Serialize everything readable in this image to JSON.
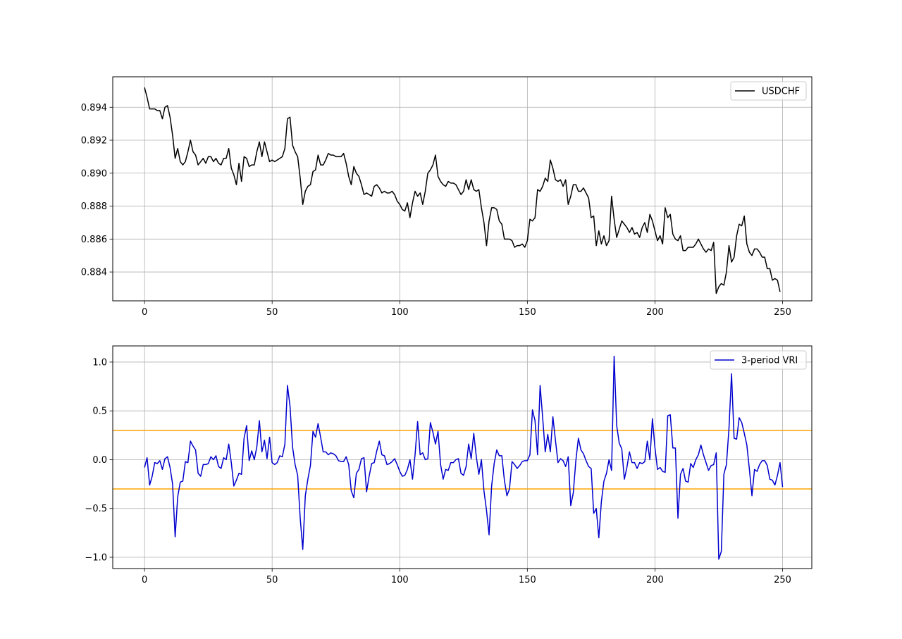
{
  "chart_data": [
    {
      "type": "line",
      "title": "",
      "xlabel": "",
      "ylabel": "",
      "xlim": [
        -12.45,
        261.45
      ],
      "ylim": [
        0.88225,
        0.89585
      ],
      "x_ticks": [
        0,
        50,
        100,
        150,
        200,
        250
      ],
      "x_tick_labels": [
        "0",
        "50",
        "100",
        "150",
        "200",
        "250"
      ],
      "y_ticks": [
        0.884,
        0.886,
        0.888,
        0.89,
        0.892,
        0.894
      ],
      "y_tick_labels": [
        "0.884",
        "0.886",
        "0.888",
        "0.890",
        "0.892",
        "0.894"
      ],
      "grid": true,
      "legend_position": "upper-right",
      "series": [
        {
          "name": "USDCHF",
          "color": "#000000",
          "x_start": 0,
          "values": [
            0.8952,
            0.8946,
            0.8939,
            0.8939,
            0.8939,
            0.8938,
            0.8938,
            0.8933,
            0.894,
            0.8941,
            0.8934,
            0.8923,
            0.8909,
            0.8915,
            0.8907,
            0.8905,
            0.8907,
            0.8913,
            0.892,
            0.8913,
            0.8911,
            0.8905,
            0.8907,
            0.8909,
            0.8906,
            0.891,
            0.891,
            0.8907,
            0.8909,
            0.8906,
            0.8905,
            0.8909,
            0.8909,
            0.8915,
            0.8903,
            0.8899,
            0.8893,
            0.8906,
            0.8895,
            0.891,
            0.8909,
            0.8904,
            0.8905,
            0.8905,
            0.8913,
            0.8919,
            0.891,
            0.8919,
            0.8913,
            0.8907,
            0.8908,
            0.8907,
            0.8908,
            0.8909,
            0.891,
            0.8915,
            0.8933,
            0.8934,
            0.8917,
            0.8913,
            0.891,
            0.8897,
            0.8881,
            0.8889,
            0.8892,
            0.8893,
            0.8901,
            0.8902,
            0.8911,
            0.8905,
            0.8905,
            0.8908,
            0.8912,
            0.8911,
            0.8911,
            0.891,
            0.891,
            0.891,
            0.8912,
            0.8906,
            0.8898,
            0.8893,
            0.8904,
            0.89,
            0.8898,
            0.8893,
            0.8887,
            0.8888,
            0.8887,
            0.8886,
            0.8892,
            0.8893,
            0.8891,
            0.8888,
            0.8889,
            0.8888,
            0.8888,
            0.8889,
            0.8887,
            0.8883,
            0.8881,
            0.8878,
            0.8877,
            0.8882,
            0.8873,
            0.8882,
            0.8889,
            0.8886,
            0.8888,
            0.8881,
            0.8889,
            0.89,
            0.8902,
            0.8905,
            0.8911,
            0.8898,
            0.8895,
            0.8893,
            0.8892,
            0.8895,
            0.8894,
            0.8894,
            0.8893,
            0.889,
            0.8887,
            0.8889,
            0.8896,
            0.889,
            0.8896,
            0.889,
            0.8889,
            0.889,
            0.8879,
            0.887,
            0.8856,
            0.8871,
            0.8879,
            0.8879,
            0.8878,
            0.8871,
            0.8869,
            0.886,
            0.886,
            0.886,
            0.8859,
            0.8855,
            0.8856,
            0.8856,
            0.8857,
            0.8855,
            0.8859,
            0.8872,
            0.8871,
            0.8873,
            0.889,
            0.8889,
            0.8892,
            0.8897,
            0.8895,
            0.8908,
            0.8903,
            0.8896,
            0.8895,
            0.8896,
            0.8892,
            0.8896,
            0.8881,
            0.8886,
            0.8893,
            0.8893,
            0.8889,
            0.8889,
            0.8891,
            0.8888,
            0.8885,
            0.8873,
            0.8874,
            0.8856,
            0.8865,
            0.8857,
            0.8862,
            0.8856,
            0.8859,
            0.8886,
            0.8872,
            0.8861,
            0.8866,
            0.8871,
            0.8869,
            0.8867,
            0.8864,
            0.8867,
            0.8863,
            0.8864,
            0.8861,
            0.8867,
            0.887,
            0.8864,
            0.8875,
            0.8871,
            0.8865,
            0.8859,
            0.8862,
            0.8857,
            0.8879,
            0.8873,
            0.8875,
            0.8863,
            0.886,
            0.8859,
            0.8862,
            0.8853,
            0.8853,
            0.8855,
            0.8855,
            0.8855,
            0.8857,
            0.886,
            0.8857,
            0.8854,
            0.8852,
            0.8854,
            0.8853,
            0.8858,
            0.8827,
            0.8831,
            0.8833,
            0.8832,
            0.884,
            0.8856,
            0.8846,
            0.8849,
            0.8862,
            0.8869,
            0.8868,
            0.8874,
            0.8857,
            0.8852,
            0.885,
            0.8854,
            0.8854,
            0.8852,
            0.8849,
            0.8849,
            0.8842,
            0.8842,
            0.8835,
            0.8836,
            0.8835,
            0.8828
          ]
        }
      ]
    },
    {
      "type": "line",
      "title": "",
      "xlabel": "",
      "ylabel": "",
      "xlim": [
        -12.45,
        261.45
      ],
      "ylim": [
        -1.1155,
        1.1655
      ],
      "x_ticks": [
        0,
        50,
        100,
        150,
        200,
        250
      ],
      "x_tick_labels": [
        "0",
        "50",
        "100",
        "150",
        "200",
        "250"
      ],
      "y_ticks": [
        -1.0,
        -0.5,
        0.0,
        0.5,
        1.0
      ],
      "y_tick_labels": [
        "−1.0",
        "−0.5",
        "0.0",
        "0.5",
        "1.0"
      ],
      "grid": true,
      "legend_position": "upper-right",
      "horizontal_lines": [
        {
          "y": 0.3,
          "color": "#ffa500"
        },
        {
          "y": -0.3,
          "color": "#ffa500"
        }
      ],
      "series": [
        {
          "name": "3-period VRI",
          "color": "#0000cd",
          "x_start": 0,
          "values": [
            -0.08,
            0.02,
            -0.26,
            -0.17,
            -0.03,
            -0.04,
            -0.01,
            -0.1,
            0.01,
            0.03,
            -0.08,
            -0.25,
            -0.79,
            -0.38,
            -0.23,
            -0.22,
            -0.02,
            -0.03,
            0.19,
            0.14,
            0.1,
            -0.14,
            -0.17,
            -0.05,
            -0.05,
            -0.04,
            0.03,
            0.0,
            0.04,
            -0.07,
            -0.09,
            0.02,
            0.0,
            0.16,
            -0.03,
            -0.27,
            -0.21,
            -0.14,
            -0.15,
            0.22,
            0.35,
            -0.01,
            0.09,
            0.0,
            0.13,
            0.4,
            0.08,
            0.2,
            0.01,
            0.23,
            -0.03,
            -0.05,
            -0.03,
            0.04,
            0.03,
            0.16,
            0.76,
            0.55,
            0.13,
            -0.05,
            -0.16,
            -0.6,
            -0.92,
            -0.37,
            -0.2,
            -0.06,
            0.29,
            0.23,
            0.37,
            0.23,
            0.08,
            0.08,
            0.05,
            0.07,
            0.06,
            0.04,
            -0.01,
            -0.02,
            -0.02,
            0.03,
            -0.05,
            -0.32,
            -0.39,
            -0.14,
            -0.1,
            0.01,
            0.02,
            -0.33,
            -0.17,
            -0.04,
            -0.03,
            0.09,
            0.19,
            0.05,
            0.04,
            -0.05,
            -0.04,
            -0.02,
            0.01,
            -0.05,
            -0.12,
            -0.17,
            -0.16,
            -0.1,
            0.0,
            -0.2,
            0.05,
            0.39,
            0.05,
            0.07,
            0.0,
            0.01,
            0.38,
            0.28,
            0.16,
            0.29,
            -0.05,
            -0.2,
            -0.1,
            -0.11,
            -0.03,
            -0.03,
            0.0,
            0.01,
            -0.14,
            -0.16,
            -0.07,
            0.16,
            0.01,
            0.27,
            0.03,
            -0.15,
            0.0,
            -0.32,
            -0.52,
            -0.77,
            -0.27,
            -0.04,
            0.1,
            0.04,
            0.04,
            -0.21,
            -0.37,
            -0.3,
            -0.02,
            -0.05,
            -0.09,
            -0.06,
            -0.02,
            -0.01,
            -0.01,
            0.05,
            0.51,
            0.4,
            0.05,
            0.76,
            0.43,
            0.08,
            0.26,
            0.08,
            0.44,
            0.2,
            -0.03,
            0.01,
            -0.01,
            -0.07,
            0.03,
            -0.47,
            -0.34,
            -0.01,
            0.22,
            0.1,
            0.06,
            -0.01,
            -0.07,
            -0.09,
            -0.55,
            -0.5,
            -0.8,
            -0.43,
            -0.22,
            -0.14,
            0.0,
            -0.11,
            1.06,
            0.35,
            0.17,
            0.11,
            -0.2,
            -0.08,
            0.08,
            -0.03,
            -0.03,
            -0.09,
            -0.03,
            -0.04,
            -0.02,
            0.19,
            0.0,
            0.42,
            0.12,
            -0.1,
            -0.08,
            -0.12,
            -0.13,
            0.45,
            0.46,
            0.12,
            0.12,
            -0.6,
            -0.15,
            -0.09,
            -0.22,
            -0.23,
            -0.04,
            -0.08,
            0.0,
            0.05,
            0.15,
            0.05,
            -0.03,
            -0.11,
            -0.06,
            -0.05,
            0.07,
            -1.02,
            -0.94,
            -0.15,
            -0.05,
            0.32,
            0.88,
            0.22,
            0.21,
            0.43,
            0.38,
            0.27,
            0.15,
            -0.1,
            -0.37,
            -0.1,
            -0.12,
            -0.05,
            -0.01,
            -0.01,
            -0.06,
            -0.2,
            -0.21,
            -0.26,
            -0.16,
            -0.03,
            -0.28
          ]
        }
      ]
    }
  ]
}
